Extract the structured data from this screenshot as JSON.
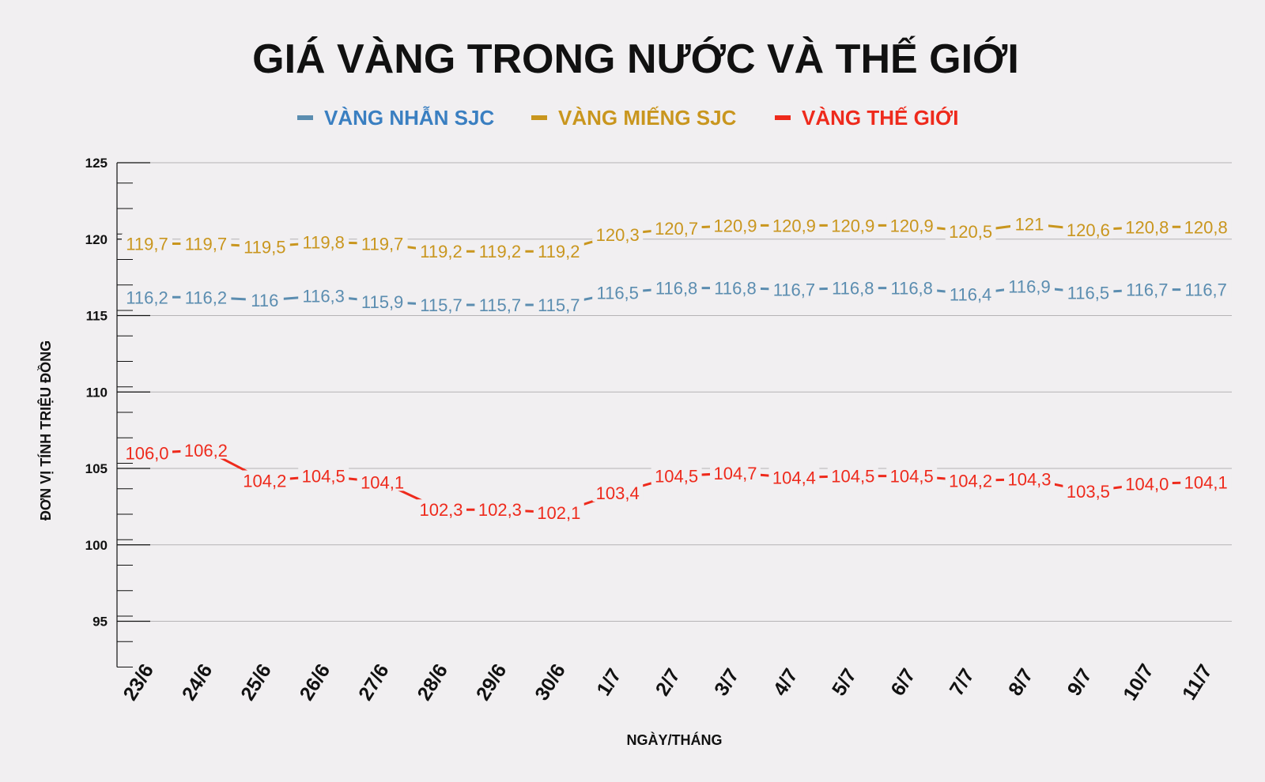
{
  "chart_data": {
    "type": "line",
    "title": "GIÁ VÀNG TRONG NƯỚC VÀ THẾ GIỚI",
    "xlabel": "NGÀY/THÁNG",
    "ylabel": "ĐƠN VỊ TÍNH TRIỆU ĐỒNG",
    "ylim": [
      92,
      125
    ],
    "yticks": [
      95,
      100,
      105,
      110,
      115,
      120,
      125
    ],
    "grid": true,
    "legend_position": "top-center",
    "categories": [
      "23/6",
      "24/6",
      "25/6",
      "26/6",
      "27/6",
      "28/6",
      "29/6",
      "30/6",
      "1/7",
      "2/7",
      "3/7",
      "4/7",
      "5/7",
      "6/7",
      "7/7",
      "8/7",
      "9/7",
      "10/7",
      "11/7"
    ],
    "series": [
      {
        "name": "VÀNG NHẪN SJC",
        "color": "#5b8db0",
        "legend_color": "#3a7fc1",
        "values": [
          116.2,
          116.2,
          116,
          116.3,
          115.9,
          115.7,
          115.7,
          115.7,
          116.5,
          116.8,
          116.8,
          116.7,
          116.8,
          116.8,
          116.4,
          116.9,
          116.5,
          116.7,
          116.7
        ],
        "labels": [
          "116,2",
          "116,2",
          "116",
          "116,3",
          "115,9",
          "115,7",
          "115,7",
          "115,7",
          "116,5",
          "116,8",
          "116,8",
          "116,7",
          "116,8",
          "116,8",
          "116,4",
          "116,9",
          "116,5",
          "116,7",
          "116,7"
        ]
      },
      {
        "name": "VÀNG MIẾNG SJC",
        "color": "#c9961e",
        "legend_color": "#c9961e",
        "values": [
          119.7,
          119.7,
          119.5,
          119.8,
          119.7,
          119.2,
          119.2,
          119.2,
          120.3,
          120.7,
          120.9,
          120.9,
          120.9,
          120.9,
          120.5,
          121,
          120.6,
          120.8,
          120.8
        ],
        "labels": [
          "119,7",
          "119,7",
          "119,5",
          "119,8",
          "119,7",
          "119,2",
          "119,2",
          "119,2",
          "120,3",
          "120,7",
          "120,9",
          "120,9",
          "120,9",
          "120,9",
          "120,5",
          "121",
          "120,6",
          "120,8",
          "120,8"
        ]
      },
      {
        "name": "VÀNG THẾ GIỚI",
        "color": "#ee2a1c",
        "legend_color": "#ee2a1c",
        "values": [
          106.0,
          106.2,
          104.2,
          104.5,
          104.1,
          102.3,
          102.3,
          102.1,
          103.4,
          104.5,
          104.7,
          104.4,
          104.5,
          104.5,
          104.2,
          104.3,
          103.5,
          104.0,
          104.1
        ],
        "labels": [
          "106,0",
          "106,2",
          "104,2",
          "104,5",
          "104,1",
          "102,3",
          "102,3",
          "102,1",
          "103,4",
          "104,5",
          "104,7",
          "104,4",
          "104,5",
          "104,5",
          "104,2",
          "104,3",
          "103,5",
          "104,0",
          "104,1"
        ]
      }
    ]
  }
}
